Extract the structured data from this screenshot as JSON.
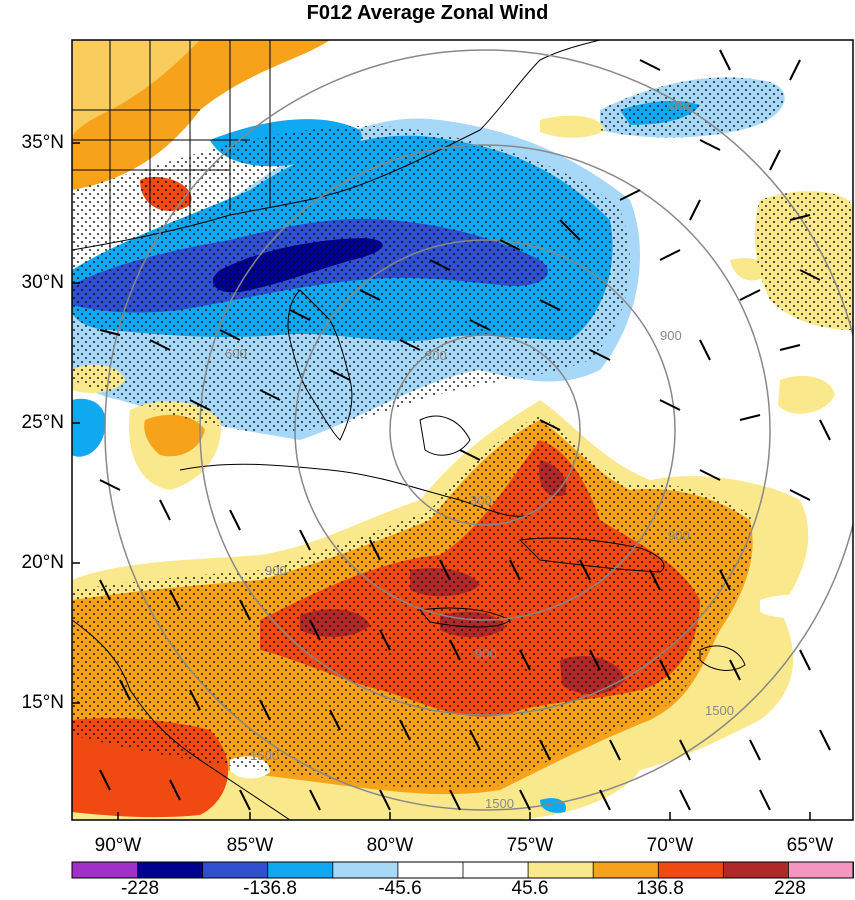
{
  "title": "F012 Average Zonal Wind",
  "map": {
    "lat_labels": [
      "35°N",
      "30°N",
      "25°N",
      "20°N",
      "15°N"
    ],
    "lon_labels": [
      "90°W",
      "85°W",
      "80°W",
      "75°W",
      "70°W",
      "65°W"
    ],
    "range_ring_labels": [
      "300",
      "300",
      "600",
      "900",
      "900",
      "900",
      "900",
      "900",
      "1500",
      "1500",
      "1500"
    ]
  },
  "colorbar": {
    "colors": [
      "#a030c8",
      "#000090",
      "#3050d0",
      "#10a8f0",
      "#a8d8f8",
      "#ffffff",
      "#ffffff",
      "#fae88c",
      "#f7a21b",
      "#f04a12",
      "#b02828",
      "#f596c0"
    ],
    "tick_labels": [
      "-228",
      "-136.8",
      "-45.6",
      "45.6",
      "136.8",
      "228"
    ]
  }
}
